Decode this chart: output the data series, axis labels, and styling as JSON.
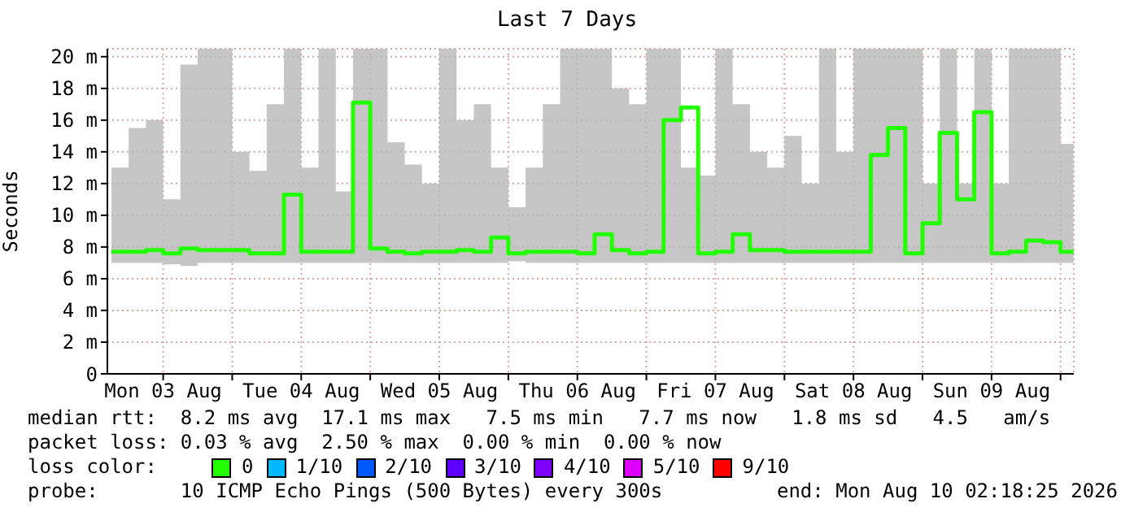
{
  "chart_data": {
    "type": "step",
    "title": "Last 7 Days",
    "ylabel": "Seconds",
    "x": [
      "2026-08-03T03:00",
      "2026-08-03T06:00",
      "2026-08-03T09:00",
      "2026-08-03T12:00",
      "2026-08-03T15:00",
      "2026-08-03T18:00",
      "2026-08-03T21:00",
      "2026-08-04T00:00",
      "2026-08-04T03:00",
      "2026-08-04T06:00",
      "2026-08-04T09:00",
      "2026-08-04T12:00",
      "2026-08-04T15:00",
      "2026-08-04T18:00",
      "2026-08-04T21:00",
      "2026-08-05T00:00",
      "2026-08-05T03:00",
      "2026-08-05T06:00",
      "2026-08-05T09:00",
      "2026-08-05T12:00",
      "2026-08-05T15:00",
      "2026-08-05T18:00",
      "2026-08-05T21:00",
      "2026-08-06T00:00",
      "2026-08-06T03:00",
      "2026-08-06T06:00",
      "2026-08-06T09:00",
      "2026-08-06T12:00",
      "2026-08-06T15:00",
      "2026-08-06T18:00",
      "2026-08-06T21:00",
      "2026-08-07T00:00",
      "2026-08-07T03:00",
      "2026-08-07T06:00",
      "2026-08-07T09:00",
      "2026-08-07T12:00",
      "2026-08-07T15:00",
      "2026-08-07T18:00",
      "2026-08-07T21:00",
      "2026-08-08T00:00",
      "2026-08-08T03:00",
      "2026-08-08T06:00",
      "2026-08-08T09:00",
      "2026-08-08T12:00",
      "2026-08-08T15:00",
      "2026-08-08T18:00",
      "2026-08-08T21:00",
      "2026-08-09T00:00",
      "2026-08-09T03:00",
      "2026-08-09T06:00",
      "2026-08-09T09:00",
      "2026-08-09T12:00",
      "2026-08-09T15:00",
      "2026-08-09T18:00",
      "2026-08-09T21:00",
      "2026-08-10T00:00",
      "2026-08-10T02:15"
    ],
    "series": [
      {
        "name": "0",
        "color": "#22ff00",
        "values": [
          7.7,
          7.7,
          7.8,
          7.6,
          7.9,
          7.8,
          7.8,
          7.8,
          7.6,
          7.6,
          11.3,
          7.7,
          7.7,
          7.7,
          17.1,
          7.9,
          7.7,
          7.6,
          7.7,
          7.7,
          7.8,
          7.7,
          8.6,
          7.6,
          7.7,
          7.7,
          7.7,
          7.6,
          8.8,
          7.8,
          7.6,
          7.7,
          16.0,
          16.8,
          7.6,
          7.7,
          8.8,
          7.8,
          7.8,
          7.7,
          7.7,
          7.7,
          7.7,
          7.7,
          13.8,
          15.5,
          7.6,
          9.5,
          15.2,
          11.0,
          16.5,
          7.6,
          7.7,
          8.4,
          8.3,
          7.7,
          7.7
        ],
        "lower": [
          7.0,
          7.0,
          7.0,
          6.9,
          6.8,
          7.0,
          7.0,
          7.0,
          7.0,
          7.0,
          7.0,
          7.0,
          7.0,
          7.0,
          7.0,
          7.0,
          7.0,
          7.0,
          7.0,
          7.0,
          7.0,
          7.0,
          7.0,
          7.1,
          7.0,
          7.0,
          7.0,
          7.0,
          7.0,
          7.0,
          7.0,
          7.0,
          7.0,
          7.0,
          7.0,
          7.0,
          7.0,
          7.0,
          7.0,
          7.0,
          7.0,
          7.0,
          7.0,
          7.0,
          7.0,
          7.0,
          7.0,
          7.0,
          7.0,
          7.0,
          7.0,
          7.0,
          7.0,
          7.0,
          7.0,
          7.0,
          7.0
        ],
        "upper": [
          13.0,
          15.5,
          16.0,
          11.0,
          19.5,
          20.5,
          20.5,
          14.0,
          12.8,
          17.0,
          20.5,
          13.0,
          20.5,
          11.5,
          20.5,
          20.5,
          14.6,
          13.2,
          12.0,
          20.5,
          16.0,
          17.0,
          13.0,
          10.5,
          13.0,
          17.0,
          20.5,
          20.5,
          20.5,
          18.0,
          17.0,
          20.5,
          20.5,
          13.0,
          12.5,
          20.5,
          17.0,
          14.0,
          13.0,
          15.0,
          12.0,
          20.5,
          14.0,
          20.5,
          20.5,
          20.5,
          20.5,
          12.0,
          20.5,
          12.0,
          20.5,
          12.0,
          20.5,
          20.5,
          20.5,
          14.5,
          14.5
        ]
      },
      {
        "name": "1/10",
        "color": "#00b8ff",
        "values": [
          null,
          null,
          null,
          null,
          null,
          null,
          null,
          null,
          null,
          null,
          null,
          null,
          null,
          null,
          null,
          null,
          null,
          null,
          null,
          null,
          null,
          null,
          null,
          null,
          null,
          null,
          null,
          null,
          null,
          null,
          null,
          null,
          null,
          null,
          null,
          null,
          null,
          null,
          null,
          null,
          null,
          null,
          null,
          null,
          null,
          null,
          null,
          null,
          null,
          null,
          null,
          null,
          null,
          null,
          null,
          null,
          null
        ]
      },
      {
        "name": "2/10",
        "color": "#0059ff",
        "values": [
          null,
          null,
          null,
          null,
          null,
          null,
          null,
          null,
          null,
          null,
          null,
          null,
          null,
          null,
          null,
          null,
          null,
          null,
          null,
          null,
          null,
          null,
          null,
          null,
          null,
          null,
          null,
          null,
          null,
          null,
          null,
          null,
          null,
          null,
          null,
          null,
          null,
          null,
          null,
          null,
          null,
          null,
          null,
          null,
          null,
          null,
          null,
          null,
          null,
          null,
          null,
          null,
          null,
          null,
          null,
          null,
          null
        ]
      },
      {
        "name": "3/10",
        "color": "#5e00ff",
        "values": [
          null,
          null,
          null,
          null,
          null,
          null,
          null,
          null,
          null,
          null,
          null,
          null,
          null,
          null,
          null,
          null,
          null,
          null,
          null,
          null,
          null,
          null,
          null,
          null,
          null,
          null,
          null,
          null,
          null,
          null,
          null,
          null,
          null,
          null,
          null,
          null,
          null,
          null,
          null,
          null,
          null,
          null,
          null,
          null,
          null,
          null,
          null,
          null,
          null,
          null,
          null,
          null,
          null,
          null,
          null,
          null,
          null
        ]
      },
      {
        "name": "4/10",
        "color": "#7e00ff",
        "values": [
          null,
          null,
          null,
          null,
          null,
          null,
          null,
          null,
          null,
          null,
          null,
          null,
          null,
          null,
          null,
          null,
          null,
          null,
          null,
          null,
          null,
          null,
          null,
          null,
          null,
          null,
          null,
          null,
          null,
          null,
          null,
          null,
          null,
          null,
          null,
          null,
          null,
          null,
          null,
          null,
          null,
          null,
          null,
          null,
          null,
          null,
          null,
          null,
          null,
          null,
          null,
          null,
          null,
          null,
          null,
          null,
          null
        ]
      },
      {
        "name": "5/10",
        "color": "#dd00ff",
        "values": [
          null,
          null,
          null,
          null,
          null,
          null,
          null,
          null,
          null,
          null,
          null,
          null,
          null,
          null,
          null,
          null,
          null,
          null,
          null,
          null,
          null,
          null,
          null,
          null,
          null,
          null,
          null,
          null,
          null,
          null,
          null,
          null,
          null,
          null,
          null,
          null,
          null,
          null,
          null,
          null,
          null,
          null,
          null,
          null,
          null,
          null,
          null,
          null,
          null,
          null,
          null,
          null,
          null,
          null,
          null,
          null,
          null
        ]
      },
      {
        "name": "9/10",
        "color": "#ff0000",
        "values": [
          null,
          null,
          null,
          null,
          null,
          null,
          null,
          null,
          null,
          null,
          null,
          null,
          null,
          null,
          null,
          null,
          null,
          null,
          null,
          null,
          null,
          null,
          null,
          null,
          null,
          null,
          null,
          null,
          null,
          null,
          null,
          null,
          null,
          null,
          null,
          null,
          null,
          null,
          null,
          null,
          null,
          null,
          null,
          null,
          null,
          null,
          null,
          null,
          null,
          null,
          null,
          null,
          null,
          null,
          null,
          null,
          null
        ]
      }
    ],
    "xlim": [
      "2026-08-03T02:18",
      "2026-08-10T02:18"
    ],
    "xticks": [
      {
        "value": "2026-08-03T12:00",
        "label": "Mon 03 Aug"
      },
      {
        "value": "2026-08-04T00:00",
        "label": null
      },
      {
        "value": "2026-08-04T12:00",
        "label": "Tue 04 Aug"
      },
      {
        "value": "2026-08-05T00:00",
        "label": null
      },
      {
        "value": "2026-08-05T12:00",
        "label": "Wed 05 Aug"
      },
      {
        "value": "2026-08-06T00:00",
        "label": null
      },
      {
        "value": "2026-08-06T12:00",
        "label": "Thu 06 Aug"
      },
      {
        "value": "2026-08-07T00:00",
        "label": null
      },
      {
        "value": "2026-08-07T12:00",
        "label": "Fri 07 Aug"
      },
      {
        "value": "2026-08-08T00:00",
        "label": null
      },
      {
        "value": "2026-08-08T12:00",
        "label": "Sat 08 Aug"
      },
      {
        "value": "2026-08-09T00:00",
        "label": null
      },
      {
        "value": "2026-08-09T12:00",
        "label": "Sun 09 Aug"
      },
      {
        "value": "2026-08-10T00:00",
        "label": null
      }
    ],
    "ylim": [
      0,
      20.5
    ],
    "yticks": [
      {
        "value": 0,
        "label": "0"
      },
      {
        "value": 2,
        "label": "2 m"
      },
      {
        "value": 4,
        "label": "4 m"
      },
      {
        "value": 6,
        "label": "6 m"
      },
      {
        "value": 8,
        "label": "8 m"
      },
      {
        "value": 10,
        "label": "10 m"
      },
      {
        "value": 12,
        "label": "12 m"
      },
      {
        "value": 14,
        "label": "14 m"
      },
      {
        "value": 16,
        "label": "16 m"
      },
      {
        "value": 18,
        "label": "18 m"
      },
      {
        "value": 20,
        "label": "20 m"
      }
    ],
    "grid": true,
    "legend": "bottom",
    "legend_title": "loss color:",
    "annotations": [
      "median rtt:  8.2 ms avg  17.1 ms max   7.5 ms min   7.7 ms now   1.8 ms sd   4.5   am/s",
      "packet loss: 0.03 % avg  2.50 % max  0.00 % min  0.00 % now",
      "probe:       10 ICMP Echo Pings (500 Bytes) every 300s",
      "end: Mon Aug 10 02:18:25 2026"
    ]
  }
}
